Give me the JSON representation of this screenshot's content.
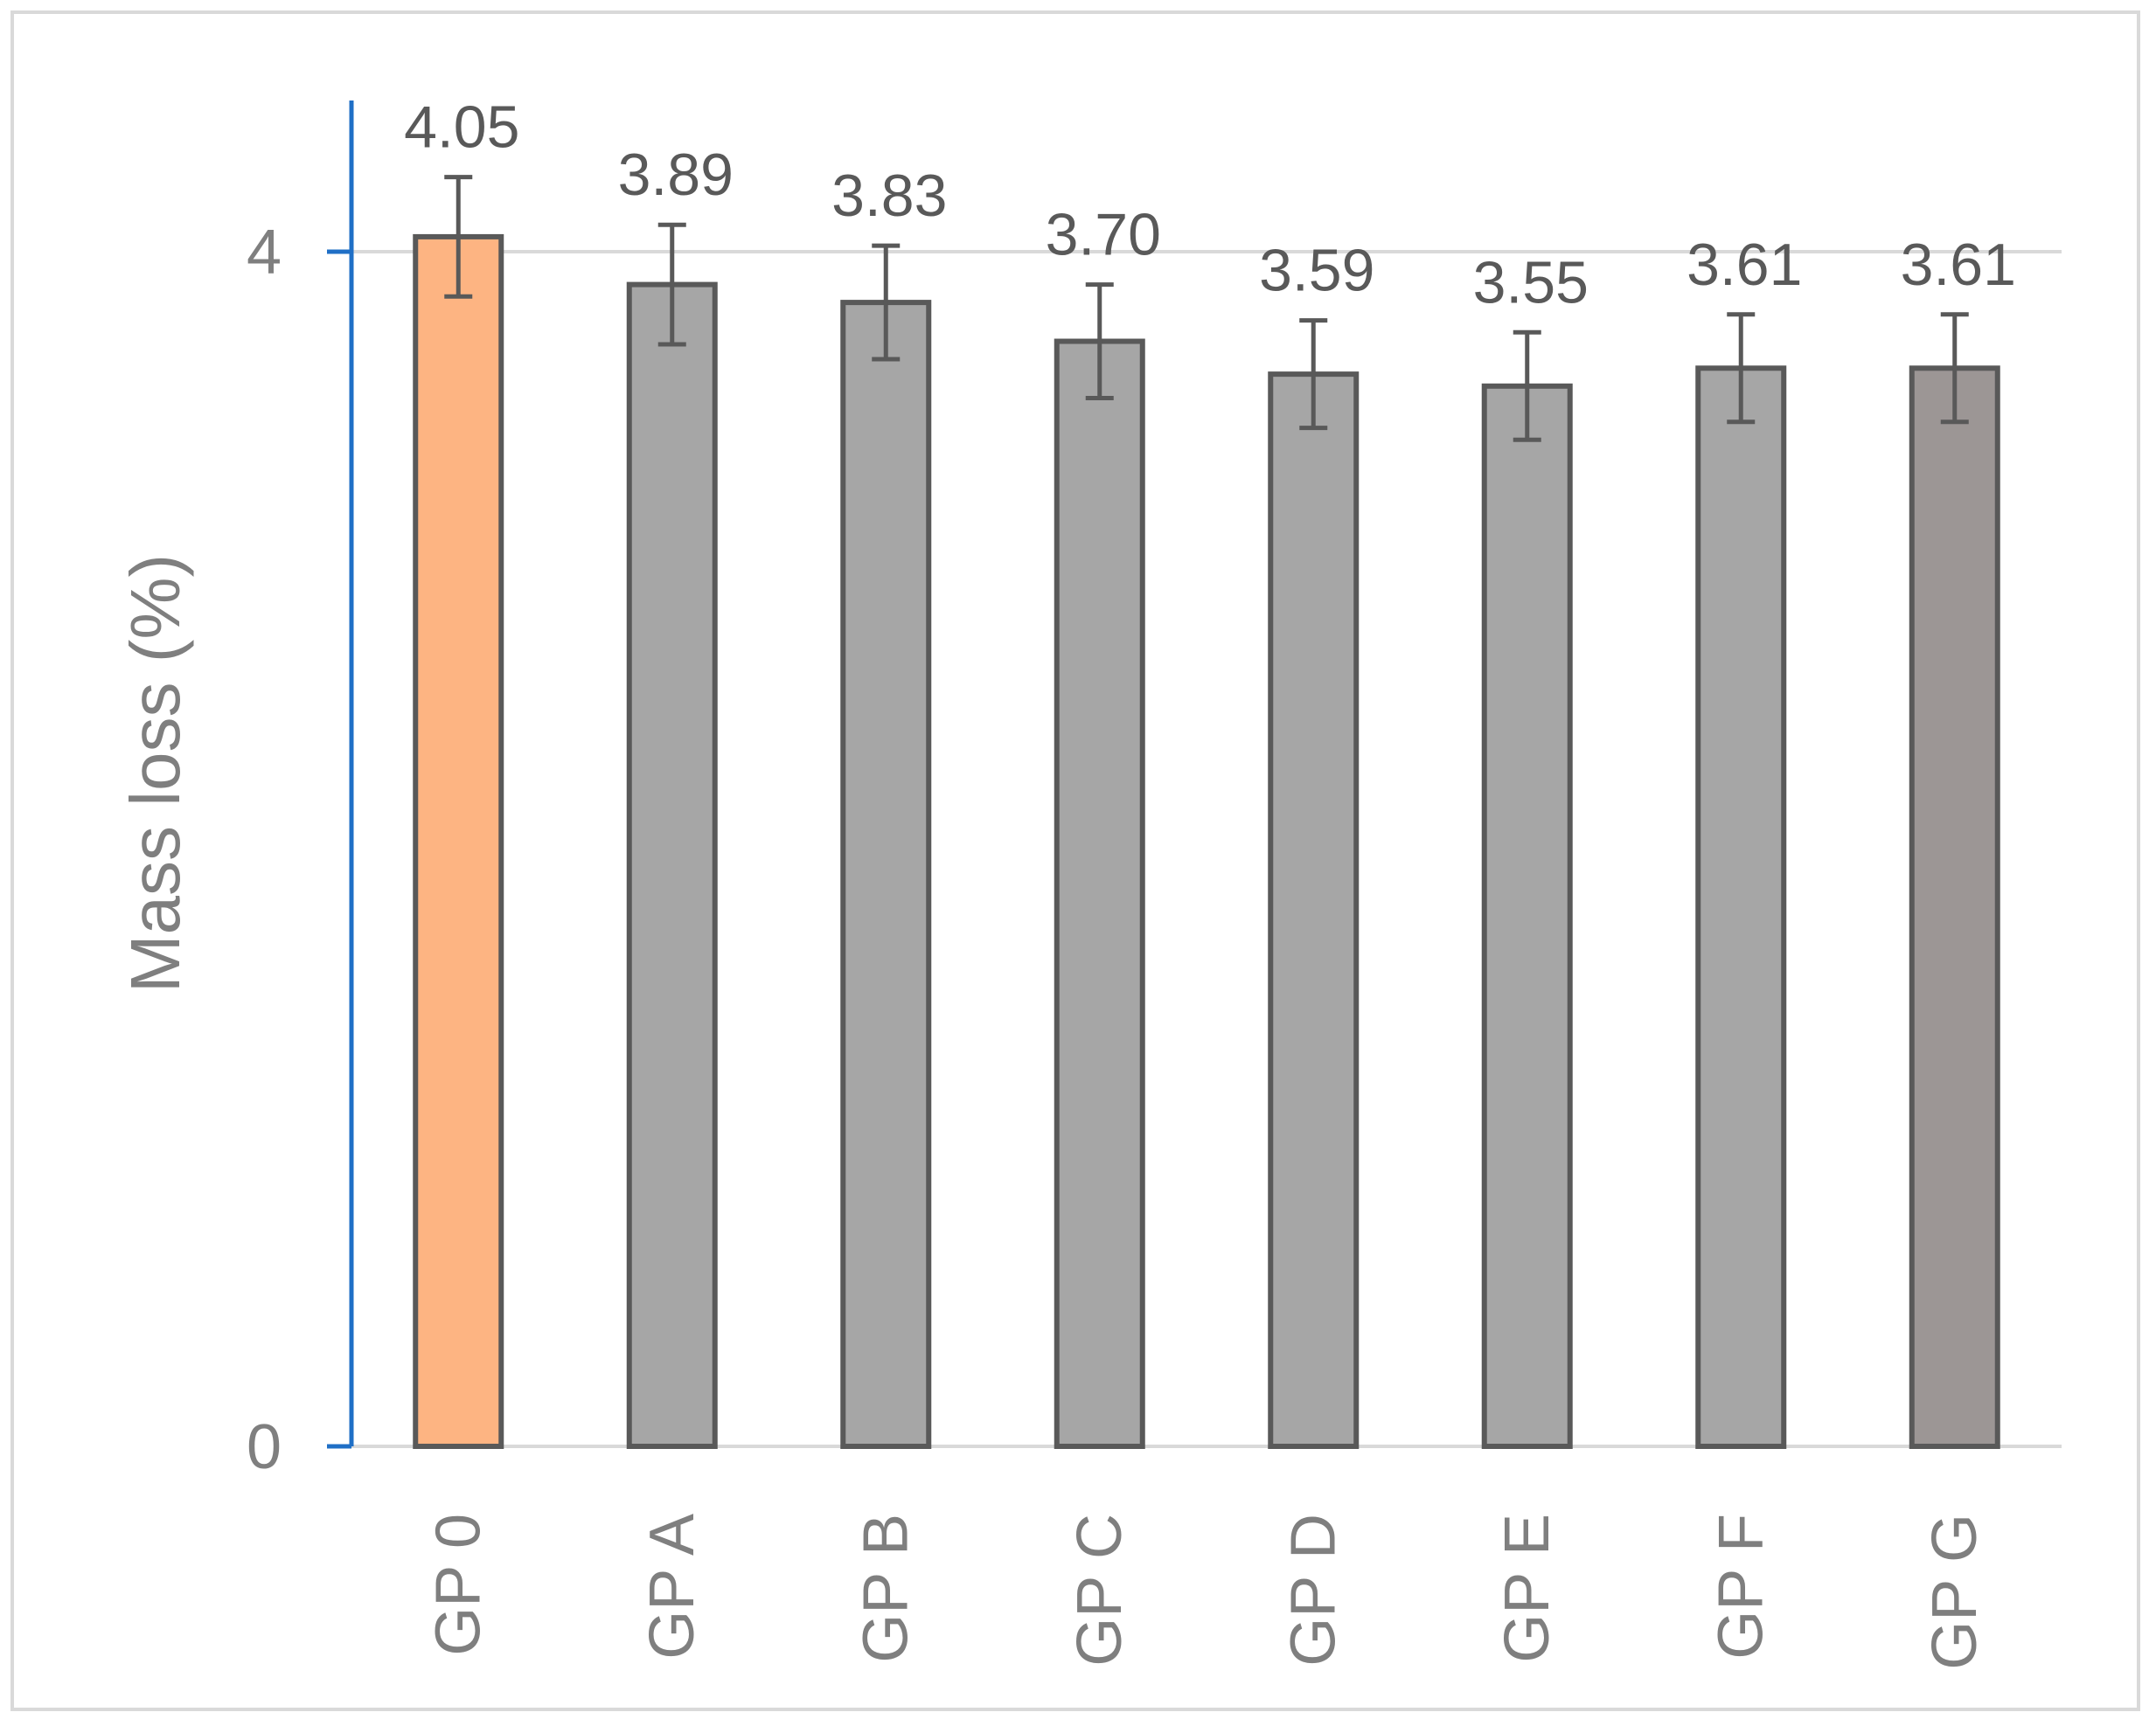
{
  "chart_data": {
    "type": "bar",
    "title": "",
    "xlabel": "",
    "ylabel": "Mass loss (%)",
    "ylim": [
      0,
      4.8
    ],
    "yticks": [
      0,
      4
    ],
    "grid": true,
    "categories": [
      "GP 0",
      "GP A",
      "GP B",
      "GP C",
      "GP D",
      "GP E",
      "GP F",
      "GP G"
    ],
    "values": [
      4.05,
      3.89,
      3.83,
      3.7,
      3.59,
      3.55,
      3.61,
      3.61
    ],
    "data_labels": [
      "4.05",
      "3.89",
      "3.83",
      "3.70",
      "3.59",
      "3.55",
      "3.61",
      "3.61"
    ],
    "error_bars": [
      0.2,
      0.2,
      0.19,
      0.19,
      0.18,
      0.18,
      0.18,
      0.18
    ],
    "colors": [
      "#fdb482",
      "#a6a6a6",
      "#a6a6a6",
      "#a6a6a6",
      "#a6a6a6",
      "#a6a6a6",
      "#a6a6a6",
      "#9c9695"
    ],
    "bar_outline_color": "#595959",
    "axis_color": "#1f6fc6",
    "gridline_color": "#d9d9d9",
    "text_color": "#7f7f7f",
    "label_color": "#595959"
  }
}
